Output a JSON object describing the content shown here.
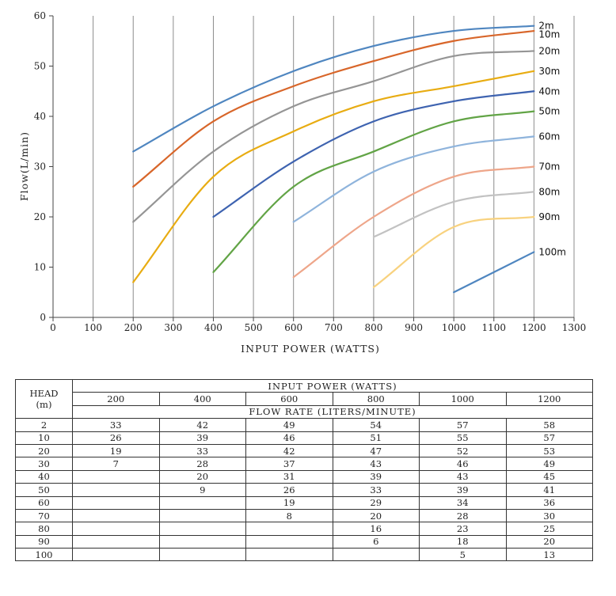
{
  "chart_data": {
    "type": "line",
    "xlabel": "INPUT POWER (WATTS)",
    "ylabel": "Flow(L/min)",
    "xlim": [
      0,
      1300
    ],
    "ylim": [
      0,
      60
    ],
    "x_ticks": [
      0,
      100,
      200,
      300,
      400,
      500,
      600,
      700,
      800,
      900,
      1000,
      1100,
      1200,
      1300
    ],
    "y_ticks": [
      0,
      10,
      20,
      30,
      40,
      50,
      60
    ],
    "grid": "vertical",
    "legend": "inline-right",
    "series": [
      {
        "name": "2m",
        "color": "#4f86c0",
        "x": [
          200,
          400,
          600,
          800,
          1000,
          1200
        ],
        "y": [
          33,
          42,
          49,
          54,
          57,
          58
        ]
      },
      {
        "name": "10m",
        "color": "#d8662a",
        "x": [
          200,
          400,
          600,
          800,
          1000,
          1200
        ],
        "y": [
          26,
          39,
          46,
          51,
          55,
          57
        ]
      },
      {
        "name": "20m",
        "color": "#959595",
        "x": [
          200,
          400,
          600,
          800,
          1000,
          1200
        ],
        "y": [
          19,
          33,
          42,
          47,
          52,
          53
        ]
      },
      {
        "name": "30m",
        "color": "#e8ac12",
        "x": [
          200,
          400,
          600,
          800,
          1000,
          1200
        ],
        "y": [
          7,
          28,
          37,
          43,
          46,
          49
        ]
      },
      {
        "name": "40m",
        "color": "#3e63b0",
        "x": [
          400,
          600,
          800,
          1000,
          1200
        ],
        "y": [
          20,
          31,
          39,
          43,
          45
        ]
      },
      {
        "name": "50m",
        "color": "#62a446",
        "x": [
          400,
          600,
          800,
          1000,
          1200
        ],
        "y": [
          9,
          26,
          33,
          39,
          41
        ]
      },
      {
        "name": "60m",
        "color": "#8fb4dc",
        "x": [
          600,
          800,
          1000,
          1200
        ],
        "y": [
          19,
          29,
          34,
          36
        ]
      },
      {
        "name": "70m",
        "color": "#eea68a",
        "x": [
          600,
          800,
          1000,
          1200
        ],
        "y": [
          8,
          20,
          28,
          30
        ]
      },
      {
        "name": "80m",
        "color": "#c2c2c2",
        "x": [
          800,
          1000,
          1200
        ],
        "y": [
          16,
          23,
          25
        ]
      },
      {
        "name": "90m",
        "color": "#f8d27f",
        "x": [
          800,
          1000,
          1200
        ],
        "y": [
          6,
          18,
          20
        ]
      },
      {
        "name": "100m",
        "color": "#4f86c0",
        "x": [
          1000,
          1200
        ],
        "y": [
          5,
          13
        ]
      }
    ]
  },
  "table": {
    "head_label_line1": "HEAD",
    "head_label_line2": "(m)",
    "input_power_title": "INPUT POWER (WATTS)",
    "power_columns": [
      "200",
      "400",
      "600",
      "800",
      "1000",
      "1200"
    ],
    "flow_rate_title": "FLOW RATE (LITERS/MINUTE)",
    "rows": [
      {
        "head": "2",
        "values": [
          "33",
          "42",
          "49",
          "54",
          "57",
          "58"
        ]
      },
      {
        "head": "10",
        "values": [
          "26",
          "39",
          "46",
          "51",
          "55",
          "57"
        ]
      },
      {
        "head": "20",
        "values": [
          "19",
          "33",
          "42",
          "47",
          "52",
          "53"
        ]
      },
      {
        "head": "30",
        "values": [
          "7",
          "28",
          "37",
          "43",
          "46",
          "49"
        ]
      },
      {
        "head": "40",
        "values": [
          "",
          "20",
          "31",
          "39",
          "43",
          "45"
        ]
      },
      {
        "head": "50",
        "values": [
          "",
          "9",
          "26",
          "33",
          "39",
          "41"
        ]
      },
      {
        "head": "60",
        "values": [
          "",
          "",
          "19",
          "29",
          "34",
          "36"
        ]
      },
      {
        "head": "70",
        "values": [
          "",
          "",
          "8",
          "20",
          "28",
          "30"
        ]
      },
      {
        "head": "80",
        "values": [
          "",
          "",
          "",
          "16",
          "23",
          "25"
        ]
      },
      {
        "head": "90",
        "values": [
          "",
          "",
          "",
          "6",
          "18",
          "20"
        ]
      },
      {
        "head": "100",
        "values": [
          "",
          "",
          "",
          "",
          "5",
          "13"
        ]
      }
    ]
  }
}
